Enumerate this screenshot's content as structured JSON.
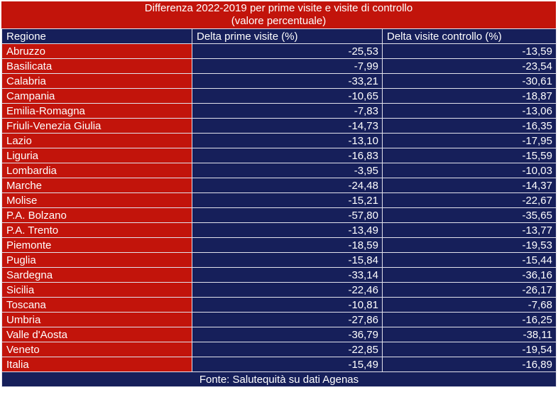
{
  "title": {
    "line1": "Differenza 2022-2019 per prime visite e visite di controllo",
    "line2": "(valore percentuale)"
  },
  "table": {
    "columns": [
      "Regione",
      "Delta prime visite (%)",
      "Delta visite controllo (%)"
    ],
    "rows": [
      {
        "regione": "Abruzzo",
        "delta_prime_visite": "-25,53",
        "delta_visite_controllo": "-13,59"
      },
      {
        "regione": "Basilicata",
        "delta_prime_visite": "-7,99",
        "delta_visite_controllo": "-23,54"
      },
      {
        "regione": "Calabria",
        "delta_prime_visite": "-33,21",
        "delta_visite_controllo": "-30,61"
      },
      {
        "regione": "Campania",
        "delta_prime_visite": "-10,65",
        "delta_visite_controllo": "-18,87"
      },
      {
        "regione": "Emilia-Romagna",
        "delta_prime_visite": "-7,83",
        "delta_visite_controllo": "-13,06"
      },
      {
        "regione": "Friuli-Venezia Giulia",
        "delta_prime_visite": "-14,73",
        "delta_visite_controllo": "-16,35"
      },
      {
        "regione": "Lazio",
        "delta_prime_visite": "-13,10",
        "delta_visite_controllo": "-17,95"
      },
      {
        "regione": "Liguria",
        "delta_prime_visite": "-16,83",
        "delta_visite_controllo": "-15,59"
      },
      {
        "regione": "Lombardia",
        "delta_prime_visite": "-3,95",
        "delta_visite_controllo": "-10,03"
      },
      {
        "regione": "Marche",
        "delta_prime_visite": "-24,48",
        "delta_visite_controllo": "-14,37"
      },
      {
        "regione": "Molise",
        "delta_prime_visite": "-15,21",
        "delta_visite_controllo": "-22,67"
      },
      {
        "regione": "P.A. Bolzano",
        "delta_prime_visite": "-57,80",
        "delta_visite_controllo": "-35,65"
      },
      {
        "regione": "P.A. Trento",
        "delta_prime_visite": "-13,49",
        "delta_visite_controllo": "-13,77"
      },
      {
        "regione": "Piemonte",
        "delta_prime_visite": "-18,59",
        "delta_visite_controllo": "-19,53"
      },
      {
        "regione": "Puglia",
        "delta_prime_visite": "-15,84",
        "delta_visite_controllo": "-15,44"
      },
      {
        "regione": "Sardegna",
        "delta_prime_visite": "-33,14",
        "delta_visite_controllo": "-36,16"
      },
      {
        "regione": "Sicilia",
        "delta_prime_visite": "-22,46",
        "delta_visite_controllo": "-26,17"
      },
      {
        "regione": "Toscana",
        "delta_prime_visite": "-10,81",
        "delta_visite_controllo": "-7,68"
      },
      {
        "regione": "Umbria",
        "delta_prime_visite": "-27,86",
        "delta_visite_controllo": "-16,25"
      },
      {
        "regione": "Valle d'Aosta",
        "delta_prime_visite": "-36,79",
        "delta_visite_controllo": "-38,11"
      },
      {
        "regione": "Veneto",
        "delta_prime_visite": "-22,85",
        "delta_visite_controllo": "-19,54"
      },
      {
        "regione": "Italia",
        "delta_prime_visite": "-15,49",
        "delta_visite_controllo": "-16,89"
      }
    ]
  },
  "footer": {
    "text": "Fonte: Salutequità su dati Agenas"
  },
  "colors": {
    "red": "#c2140b",
    "navy": "#161f5a",
    "text": "#ffffff",
    "grid": "#e2e2ec",
    "page_bg": "#ffffff"
  },
  "chart_data": {
    "type": "table",
    "title": "Differenza 2022-2019 per prime visite e visite di controllo (valore percentuale)",
    "columns": [
      "Regione",
      "Delta prime visite (%)",
      "Delta visite controllo (%)"
    ],
    "categories": [
      "Abruzzo",
      "Basilicata",
      "Calabria",
      "Campania",
      "Emilia-Romagna",
      "Friuli-Venezia Giulia",
      "Lazio",
      "Liguria",
      "Lombardia",
      "Marche",
      "Molise",
      "P.A. Bolzano",
      "P.A. Trento",
      "Piemonte",
      "Puglia",
      "Sardegna",
      "Sicilia",
      "Toscana",
      "Umbria",
      "Valle d'Aosta",
      "Veneto",
      "Italia"
    ],
    "series": [
      {
        "name": "Delta prime visite (%)",
        "values": [
          -25.53,
          -7.99,
          -33.21,
          -10.65,
          -7.83,
          -14.73,
          -13.1,
          -16.83,
          -3.95,
          -24.48,
          -15.21,
          -57.8,
          -13.49,
          -18.59,
          -15.84,
          -33.14,
          -22.46,
          -10.81,
          -27.86,
          -36.79,
          -22.85,
          -15.49
        ]
      },
      {
        "name": "Delta visite controllo (%)",
        "values": [
          -13.59,
          -23.54,
          -30.61,
          -18.87,
          -13.06,
          -16.35,
          -17.95,
          -15.59,
          -10.03,
          -14.37,
          -22.67,
          -35.65,
          -13.77,
          -19.53,
          -15.44,
          -36.16,
          -26.17,
          -7.68,
          -16.25,
          -38.11,
          -19.54,
          -16.89
        ]
      }
    ],
    "source": "Fonte: Salutequità su dati Agenas"
  }
}
